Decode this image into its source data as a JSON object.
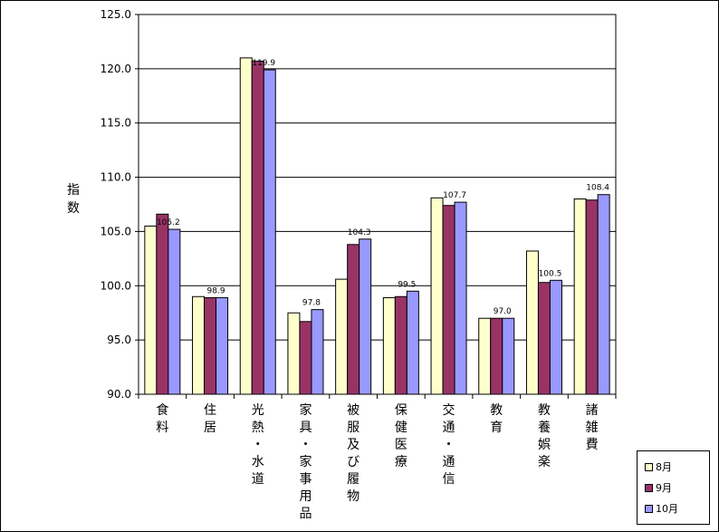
{
  "chart_data": {
    "type": "bar",
    "ylabel": "指数",
    "ylim": [
      90.0,
      125.0
    ],
    "ytick_step": 5.0,
    "ytick_labels": [
      "90.0",
      "95.0",
      "100.0",
      "105.0",
      "110.0",
      "115.0",
      "120.0",
      "125.0"
    ],
    "grid": true,
    "legend_position": "bottom-right",
    "categories": [
      "食料",
      "住居",
      "光熱・水道",
      "家具・家事用品",
      "被服及び履物",
      "保健医療",
      "交通・通信",
      "教育",
      "教養娯楽",
      "諸雑費"
    ],
    "series": [
      {
        "name": "8月",
        "color": "#ffffcc",
        "values": [
          105.5,
          99.0,
          121.0,
          97.5,
          100.6,
          98.9,
          108.1,
          97.0,
          103.2,
          108.0
        ]
      },
      {
        "name": "9月",
        "color": "#993366",
        "values": [
          106.6,
          98.9,
          120.7,
          96.7,
          103.8,
          99.0,
          107.4,
          97.0,
          100.3,
          107.9
        ]
      },
      {
        "name": "10月",
        "color": "#9999ff",
        "values": [
          105.2,
          98.9,
          119.9,
          97.8,
          104.3,
          99.5,
          107.7,
          97.0,
          100.5,
          108.4
        ]
      }
    ],
    "data_labels": [
      "105.2",
      "98.9",
      "119.9",
      "97.8",
      "104.3",
      "99.5",
      "107.7",
      "97.0",
      "100.5",
      "108.4"
    ]
  }
}
